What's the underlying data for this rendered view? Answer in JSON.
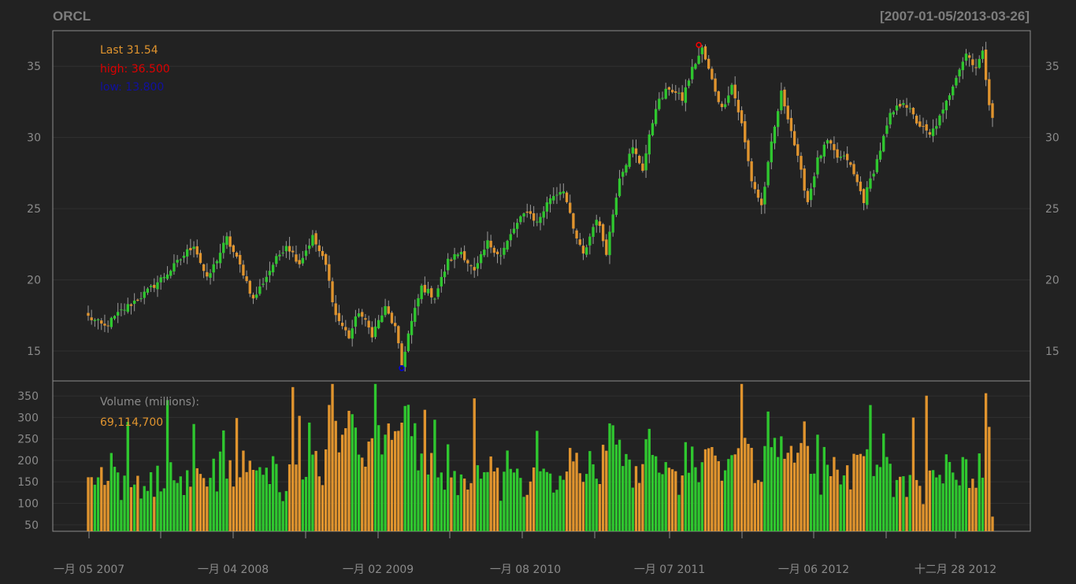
{
  "chart_data": {
    "type": "candlestick",
    "symbol": "ORCL",
    "date_range": "[2007-01-05/2013-03-26]",
    "colors": {
      "background": "#222222",
      "up": "#2fc72f",
      "down": "#e0942e",
      "frame": "#8c8c8c",
      "text": "#8a8a8a",
      "grid": "#303030",
      "high_marker": "#ff0000",
      "low_marker": "#0000dd"
    },
    "legend": {
      "last": "Last 31.54",
      "high": "high: 36.500",
      "low": "low: 13.800"
    },
    "volume_panel": {
      "title": "Volume (millions):",
      "last_value": "69,114,700",
      "y_ticks": [
        "50",
        "100",
        "150",
        "200",
        "250",
        "300",
        "350"
      ],
      "ylim": [
        35,
        385
      ]
    },
    "price_panel": {
      "y_ticks": [
        "15",
        "20",
        "25",
        "30",
        "35"
      ],
      "ylim": [
        12.9,
        37.5
      ]
    },
    "x_labels": [
      "一月 05 2007",
      "一月 04 2008",
      "一月 02 2009",
      "一月 08 2010",
      "一月 07 2011",
      "一月 06 2012",
      "十二月 28 2012"
    ],
    "price_waypoints": [
      [
        0,
        17.4
      ],
      [
        5,
        16.7
      ],
      [
        10,
        17.8
      ],
      [
        18,
        19.2
      ],
      [
        25,
        20.7
      ],
      [
        32,
        22.5
      ],
      [
        36,
        20.0
      ],
      [
        42,
        22.9
      ],
      [
        47,
        20.5
      ],
      [
        50,
        18.6
      ],
      [
        56,
        21.1
      ],
      [
        60,
        22.5
      ],
      [
        64,
        21.2
      ],
      [
        68,
        23.0
      ],
      [
        72,
        21.0
      ],
      [
        75,
        17.5
      ],
      [
        79,
        16.0
      ],
      [
        82,
        17.8
      ],
      [
        86,
        16.2
      ],
      [
        90,
        18.0
      ],
      [
        93,
        16.6
      ],
      [
        95,
        14.0
      ],
      [
        97,
        16.2
      ],
      [
        101,
        19.5
      ],
      [
        105,
        18.8
      ],
      [
        109,
        21.3
      ],
      [
        113,
        22.0
      ],
      [
        117,
        20.5
      ],
      [
        121,
        22.6
      ],
      [
        125,
        21.7
      ],
      [
        129,
        23.6
      ],
      [
        133,
        24.9
      ],
      [
        136,
        24.0
      ],
      [
        140,
        25.8
      ],
      [
        144,
        26.4
      ],
      [
        147,
        23.5
      ],
      [
        150,
        21.7
      ],
      [
        154,
        24.4
      ],
      [
        157,
        22.0
      ],
      [
        161,
        27.3
      ],
      [
        165,
        29.2
      ],
      [
        168,
        27.8
      ],
      [
        172,
        32.2
      ],
      [
        176,
        33.5
      ],
      [
        180,
        32.7
      ],
      [
        183,
        34.8
      ],
      [
        186,
        36.2
      ],
      [
        189,
        34.0
      ],
      [
        192,
        32.0
      ],
      [
        195,
        33.7
      ],
      [
        198,
        30.9
      ],
      [
        201,
        27.0
      ],
      [
        204,
        25.2
      ],
      [
        207,
        29.5
      ],
      [
        210,
        33.1
      ],
      [
        212,
        31.5
      ],
      [
        215,
        28.5
      ],
      [
        218,
        25.5
      ],
      [
        221,
        28.4
      ],
      [
        224,
        29.7
      ],
      [
        227,
        28.6
      ],
      [
        230,
        28.5
      ],
      [
        233,
        26.8
      ],
      [
        235,
        25.6
      ],
      [
        239,
        28.4
      ],
      [
        243,
        31.5
      ],
      [
        247,
        32.6
      ],
      [
        251,
        31.1
      ],
      [
        255,
        30.1
      ],
      [
        259,
        31.8
      ],
      [
        263,
        34.4
      ],
      [
        266,
        35.9
      ],
      [
        269,
        35.0
      ],
      [
        271,
        35.9
      ],
      [
        273,
        32.5
      ],
      [
        274,
        31.5
      ]
    ],
    "high_point": {
      "index": 185,
      "value": 36.5
    },
    "low_point": {
      "index": 95,
      "value": 13.8
    }
  }
}
